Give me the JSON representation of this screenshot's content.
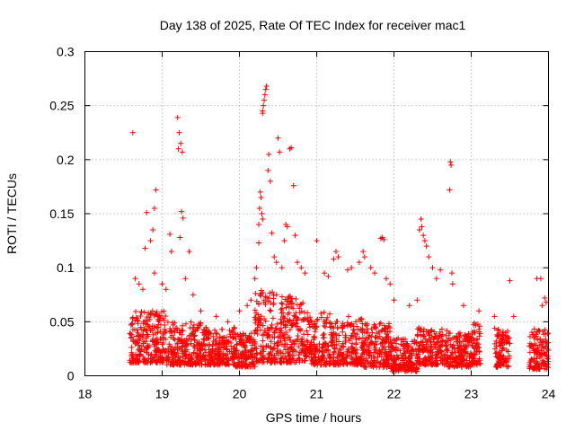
{
  "chart_data": {
    "type": "scatter",
    "title": "Day 138 of 2025, Rate Of TEC Index for receiver mac1",
    "xlabel": "GPS time / hours",
    "ylabel": "ROTI / TECUs",
    "xlim": [
      18,
      24
    ],
    "ylim": [
      0,
      0.3
    ],
    "x_ticks": [
      18,
      19,
      20,
      21,
      22,
      23,
      24
    ],
    "x_tick_labels": [
      "18",
      "19",
      "20",
      "21",
      "22",
      "23",
      "24"
    ],
    "y_ticks": [
      0,
      0.05,
      0.1,
      0.15,
      0.2,
      0.25,
      0.3
    ],
    "y_tick_labels": [
      "0",
      "0.05",
      "0.1",
      "0.15",
      "0.2",
      "0.25",
      "0.3"
    ],
    "grid": true,
    "marker": "+",
    "color": "#ff0000",
    "series": [
      {
        "name": "ROTI",
        "points": [
          [
            18.62,
            0.225
          ],
          [
            18.85,
            0.125
          ],
          [
            18.88,
            0.135
          ],
          [
            18.9,
            0.155
          ],
          [
            18.92,
            0.172
          ],
          [
            18.8,
            0.151
          ],
          [
            18.78,
            0.118
          ],
          [
            19.2,
            0.239
          ],
          [
            19.22,
            0.225
          ],
          [
            19.24,
            0.215
          ],
          [
            19.21,
            0.21
          ],
          [
            19.26,
            0.207
          ],
          [
            19.25,
            0.152
          ],
          [
            19.27,
            0.146
          ],
          [
            19.23,
            0.128
          ],
          [
            19.1,
            0.131
          ],
          [
            19.12,
            0.115
          ],
          [
            19.35,
            0.115
          ],
          [
            20.3,
            0.245
          ],
          [
            20.31,
            0.25
          ],
          [
            20.32,
            0.255
          ],
          [
            20.33,
            0.26
          ],
          [
            20.34,
            0.265
          ],
          [
            20.35,
            0.268
          ],
          [
            20.3,
            0.243
          ],
          [
            20.38,
            0.205
          ],
          [
            20.37,
            0.19
          ],
          [
            20.4,
            0.18
          ],
          [
            20.5,
            0.22
          ],
          [
            20.52,
            0.207
          ],
          [
            20.65,
            0.21
          ],
          [
            20.67,
            0.211
          ],
          [
            20.7,
            0.176
          ],
          [
            20.27,
            0.17
          ],
          [
            20.28,
            0.165
          ],
          [
            20.26,
            0.155
          ],
          [
            20.29,
            0.15
          ],
          [
            20.3,
            0.145
          ],
          [
            20.25,
            0.14
          ],
          [
            20.6,
            0.14
          ],
          [
            20.62,
            0.138
          ],
          [
            20.72,
            0.13
          ],
          [
            20.58,
            0.125
          ],
          [
            20.25,
            0.123
          ],
          [
            20.42,
            0.132
          ],
          [
            21.0,
            0.125
          ],
          [
            21.25,
            0.115
          ],
          [
            21.28,
            0.11
          ],
          [
            21.22,
            0.108
          ],
          [
            21.6,
            0.115
          ],
          [
            21.62,
            0.11
          ],
          [
            21.55,
            0.105
          ],
          [
            21.85,
            0.128
          ],
          [
            21.87,
            0.126
          ],
          [
            21.83,
            0.127
          ],
          [
            22.35,
            0.145
          ],
          [
            22.36,
            0.138
          ],
          [
            22.33,
            0.135
          ],
          [
            22.38,
            0.13
          ],
          [
            22.4,
            0.125
          ],
          [
            22.42,
            0.12
          ],
          [
            22.45,
            0.11
          ],
          [
            22.5,
            0.1
          ],
          [
            22.6,
            0.098
          ],
          [
            22.55,
            0.09
          ],
          [
            22.73,
            0.198
          ],
          [
            22.74,
            0.195
          ],
          [
            22.72,
            0.172
          ],
          [
            22.75,
            0.095
          ],
          [
            22.76,
            0.085
          ],
          [
            23.5,
            0.088
          ],
          [
            23.85,
            0.09
          ],
          [
            23.9,
            0.09
          ],
          [
            23.95,
            0.072
          ],
          [
            23.97,
            0.068
          ],
          [
            23.92,
            0.065
          ],
          [
            20.45,
            0.11
          ],
          [
            20.48,
            0.105
          ],
          [
            20.55,
            0.1
          ],
          [
            20.75,
            0.105
          ],
          [
            20.8,
            0.1
          ],
          [
            20.85,
            0.095
          ],
          [
            21.1,
            0.095
          ],
          [
            21.15,
            0.092
          ],
          [
            21.4,
            0.098
          ],
          [
            21.45,
            0.1
          ],
          [
            21.7,
            0.1
          ],
          [
            21.75,
            0.095
          ],
          [
            21.9,
            0.09
          ],
          [
            21.95,
            0.085
          ],
          [
            22.0,
            0.07
          ],
          [
            22.2,
            0.065
          ],
          [
            22.3,
            0.07
          ],
          [
            22.9,
            0.065
          ],
          [
            23.1,
            0.06
          ],
          [
            23.3,
            0.055
          ],
          [
            23.55,
            0.055
          ],
          [
            18.65,
            0.09
          ],
          [
            18.7,
            0.085
          ],
          [
            18.75,
            0.08
          ],
          [
            18.9,
            0.095
          ],
          [
            19.0,
            0.085
          ],
          [
            19.05,
            0.08
          ],
          [
            19.3,
            0.09
          ],
          [
            19.4,
            0.075
          ],
          [
            19.5,
            0.06
          ],
          [
            19.7,
            0.055
          ],
          [
            19.85,
            0.05
          ],
          [
            20.0,
            0.06
          ],
          [
            20.1,
            0.065
          ],
          [
            20.15,
            0.07
          ],
          [
            20.2,
            0.09
          ],
          [
            20.22,
            0.1
          ]
        ]
      }
    ],
    "dense_band": {
      "segments": [
        [
          18.58,
          19.05,
          0.012,
          0.06
        ],
        [
          19.05,
          19.5,
          0.01,
          0.05
        ],
        [
          19.5,
          19.95,
          0.01,
          0.045
        ],
        [
          19.95,
          20.2,
          0.008,
          0.04
        ],
        [
          20.2,
          20.45,
          0.012,
          0.08
        ],
        [
          20.45,
          20.85,
          0.012,
          0.075
        ],
        [
          20.85,
          21.2,
          0.01,
          0.06
        ],
        [
          21.2,
          21.6,
          0.01,
          0.055
        ],
        [
          21.6,
          21.95,
          0.008,
          0.05
        ],
        [
          21.95,
          22.3,
          0.004,
          0.035
        ],
        [
          22.3,
          22.7,
          0.01,
          0.045
        ],
        [
          22.7,
          23.0,
          0.008,
          0.04
        ],
        [
          23.0,
          23.12,
          0.01,
          0.05
        ],
        [
          23.3,
          23.5,
          0.008,
          0.045
        ],
        [
          23.75,
          24.0,
          0.006,
          0.045
        ]
      ],
      "count": 2600
    }
  }
}
